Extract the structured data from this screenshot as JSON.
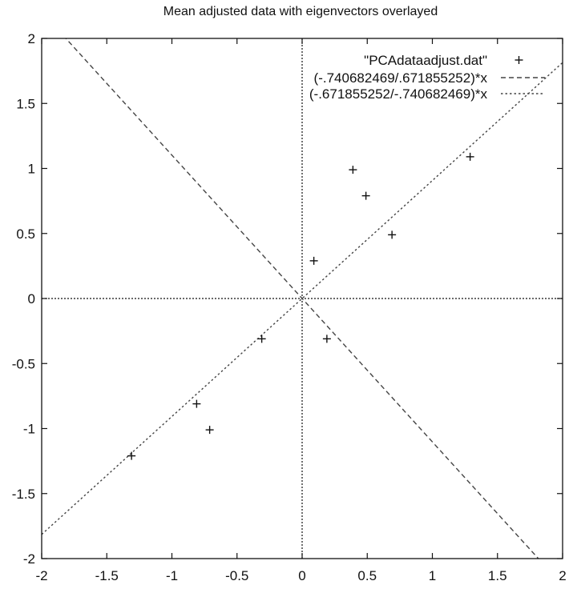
{
  "chart_data": {
    "type": "scatter",
    "title": "Mean adjusted data with eigenvectors overlayed",
    "xlabel": "",
    "ylabel": "",
    "xlim": [
      -2,
      2
    ],
    "ylim": [
      -2,
      2
    ],
    "x_ticks": [
      "-2",
      "-1.5",
      "-1",
      "-0.5",
      "0",
      "0.5",
      "1",
      "1.5",
      "2"
    ],
    "y_ticks": [
      "-2",
      "-1.5",
      "-1",
      "-0.5",
      "0",
      "0.5",
      "1",
      "1.5",
      "2"
    ],
    "grid": false,
    "zero_axes": true,
    "legend_position": "top-right",
    "series": [
      {
        "name": "\"PCAdataadjust.dat\"",
        "kind": "points",
        "marker": "plus",
        "points": [
          [
            0.69,
            0.49
          ],
          [
            -1.31,
            -1.21
          ],
          [
            0.39,
            0.99
          ],
          [
            0.09,
            0.29
          ],
          [
            1.29,
            1.09
          ],
          [
            0.49,
            0.79
          ],
          [
            0.19,
            -0.31
          ],
          [
            -0.81,
            -0.81
          ],
          [
            -0.31,
            -0.31
          ],
          [
            -0.71,
            -1.01
          ]
        ]
      },
      {
        "name": "(-.740682469/.671855252)*x",
        "kind": "line",
        "slope": -1.1024,
        "dash": "long"
      },
      {
        "name": "(-.671855252/-.740682469)*x",
        "kind": "line",
        "slope": 0.9071,
        "dash": "short"
      }
    ],
    "colors": {
      "axes": "#111111",
      "series": "#444444"
    }
  }
}
